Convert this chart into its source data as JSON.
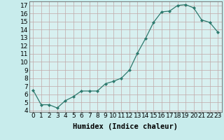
{
  "x": [
    0,
    1,
    2,
    3,
    4,
    5,
    6,
    7,
    8,
    9,
    10,
    11,
    12,
    13,
    14,
    15,
    16,
    17,
    18,
    19,
    20,
    21,
    22,
    23
  ],
  "y": [
    6.5,
    4.7,
    4.7,
    4.3,
    5.2,
    5.7,
    6.4,
    6.4,
    6.4,
    7.3,
    7.6,
    8.0,
    9.0,
    11.1,
    12.9,
    14.9,
    16.2,
    16.3,
    17.0,
    17.1,
    16.7,
    15.2,
    14.9,
    13.7
  ],
  "xlabel": "Humidex (Indice chaleur)",
  "xlim": [
    -0.5,
    23.5
  ],
  "ylim": [
    3.8,
    17.5
  ],
  "yticks": [
    4,
    5,
    6,
    7,
    8,
    9,
    10,
    11,
    12,
    13,
    14,
    15,
    16,
    17
  ],
  "xticks": [
    0,
    1,
    2,
    3,
    4,
    5,
    6,
    7,
    8,
    9,
    10,
    11,
    12,
    13,
    14,
    15,
    16,
    17,
    18,
    19,
    20,
    21,
    22,
    23
  ],
  "line_color": "#2d7a6e",
  "marker": "D",
  "marker_size": 2.0,
  "bg_color": "#c8ecec",
  "grid_color": "#c0a8a8",
  "axis_bg": "#d8f0f0",
  "font_color": "#000000",
  "xlabel_fontsize": 7.5,
  "tick_fontsize": 6.5
}
